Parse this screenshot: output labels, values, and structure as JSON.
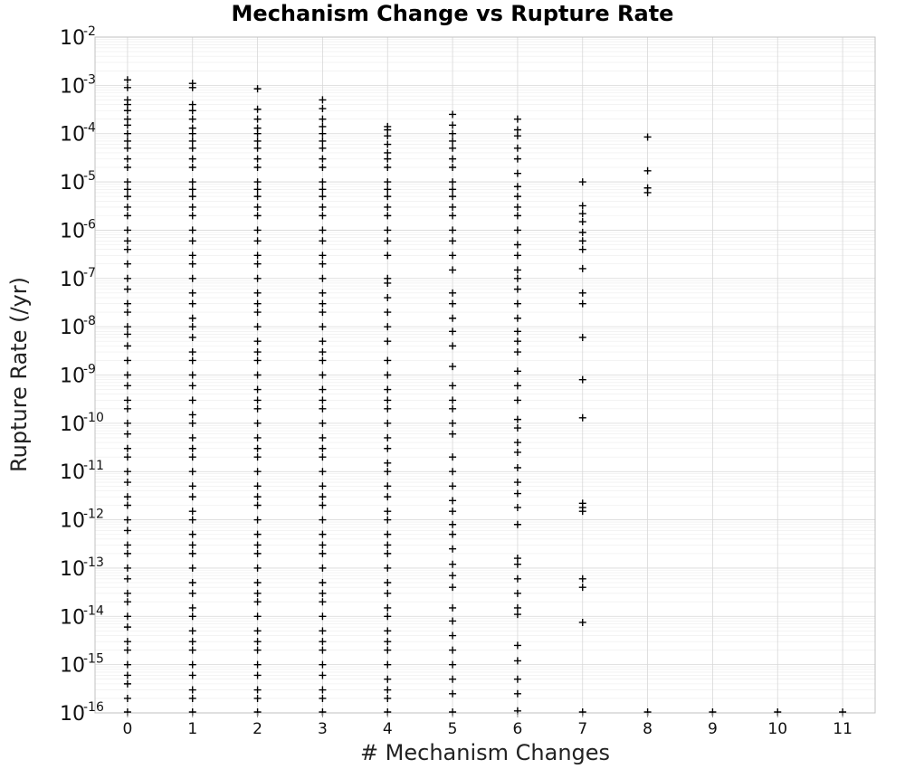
{
  "chart_data": {
    "type": "scatter",
    "title": "Mechanism Change vs Rupture Rate",
    "xlabel": "# Mechanism Changes",
    "ylabel": "Rupture Rate (/yr)",
    "x_ticks": [
      "0",
      "1",
      "2",
      "3",
      "4",
      "5",
      "6",
      "7",
      "8",
      "9",
      "10",
      "11"
    ],
    "x_range": [
      -0.5,
      11.5
    ],
    "y_scale": "log",
    "y_range": [
      1e-16,
      0.01
    ],
    "y_ticks": [
      {
        "base": "10",
        "exp": "-2"
      },
      {
        "base": "10",
        "exp": "-3"
      },
      {
        "base": "10",
        "exp": "-4"
      },
      {
        "base": "10",
        "exp": "-5"
      },
      {
        "base": "10",
        "exp": "-6"
      },
      {
        "base": "10",
        "exp": "-7"
      },
      {
        "base": "10",
        "exp": "-8"
      },
      {
        "base": "10",
        "exp": "-9"
      },
      {
        "base": "10",
        "exp": "-10"
      },
      {
        "base": "10",
        "exp": "-11"
      },
      {
        "base": "10",
        "exp": "-12"
      },
      {
        "base": "10",
        "exp": "-13"
      },
      {
        "base": "10",
        "exp": "-14"
      },
      {
        "base": "10",
        "exp": "-15"
      },
      {
        "base": "10",
        "exp": "-16"
      }
    ],
    "grid": true,
    "marker": "+",
    "series": [
      {
        "x": 0,
        "y": [
          0.0013,
          0.0009,
          0.0005,
          0.0004,
          0.0003,
          0.0002,
          0.00015,
          0.0001,
          7e-05,
          5e-05,
          3e-05,
          2e-05,
          1e-05,
          7e-06,
          5e-06,
          3e-06,
          2e-06,
          1e-06,
          6e-07,
          4e-07,
          2e-07,
          1e-07,
          6e-08,
          3e-08,
          2e-08,
          1e-08,
          7e-09,
          4e-09,
          2e-09,
          1e-09,
          6e-10,
          3e-10,
          2e-10,
          1e-10,
          6e-11,
          3e-11,
          2e-11,
          1e-11,
          6e-12,
          3e-12,
          2e-12,
          1e-12,
          6e-13,
          3e-13,
          2e-13,
          1e-13,
          6e-14,
          3e-14,
          2e-14,
          1e-14,
          6e-15,
          3e-15,
          2e-15,
          1e-15,
          6e-16,
          4e-16,
          2e-16,
          1e-16
        ]
      },
      {
        "x": 1,
        "y": [
          0.0011,
          0.0009,
          0.0004,
          0.0003,
          0.0002,
          0.00013,
          0.0001,
          7e-05,
          5e-05,
          3e-05,
          2e-05,
          1e-05,
          7e-06,
          5e-06,
          3e-06,
          2e-06,
          1e-06,
          6e-07,
          3e-07,
          2e-07,
          1e-07,
          5e-08,
          3e-08,
          1.5e-08,
          1e-08,
          6e-09,
          3e-09,
          2e-09,
          1e-09,
          6e-10,
          3e-10,
          1.5e-10,
          1e-10,
          5e-11,
          3e-11,
          2e-11,
          1e-11,
          5e-12,
          3e-12,
          1.5e-12,
          1e-12,
          5e-13,
          3e-13,
          2e-13,
          1e-13,
          5e-14,
          3e-14,
          1.5e-14,
          1e-14,
          5e-15,
          3e-15,
          2e-15,
          1e-15,
          6e-16,
          3e-16,
          2e-16,
          1e-16
        ]
      },
      {
        "x": 2,
        "y": [
          0.00085,
          0.00032,
          0.0002,
          0.00013,
          0.0001,
          7e-05,
          5e-05,
          3e-05,
          2e-05,
          1e-05,
          7e-06,
          5e-06,
          3e-06,
          2e-06,
          1e-06,
          6e-07,
          3e-07,
          2e-07,
          1e-07,
          5e-08,
          3e-08,
          2e-08,
          1e-08,
          5e-09,
          3e-09,
          2e-09,
          1e-09,
          5e-10,
          3e-10,
          2e-10,
          1e-10,
          5e-11,
          3e-11,
          2e-11,
          1e-11,
          5e-12,
          3e-12,
          2e-12,
          1e-12,
          5e-13,
          3e-13,
          2e-13,
          1e-13,
          5e-14,
          3e-14,
          2e-14,
          1e-14,
          5e-15,
          3e-15,
          2e-15,
          1e-15,
          6e-16,
          3e-16,
          2e-16,
          1e-16
        ]
      },
      {
        "x": 3,
        "y": [
          0.0005,
          0.00033,
          0.0002,
          0.00014,
          0.0001,
          7e-05,
          5e-05,
          3e-05,
          2e-05,
          1e-05,
          7e-06,
          5e-06,
          3e-06,
          2e-06,
          1e-06,
          6e-07,
          3e-07,
          2e-07,
          1e-07,
          5e-08,
          3e-08,
          2e-08,
          1e-08,
          5e-09,
          3e-09,
          2e-09,
          1e-09,
          5e-10,
          3e-10,
          2e-10,
          1e-10,
          5e-11,
          3e-11,
          2e-11,
          1e-11,
          5e-12,
          3e-12,
          2e-12,
          1e-12,
          5e-13,
          3e-13,
          2e-13,
          1e-13,
          5e-14,
          3e-14,
          2e-14,
          1e-14,
          5e-15,
          3e-15,
          2e-15,
          1e-15,
          6e-16,
          3e-16,
          2e-16,
          1e-16
        ]
      },
      {
        "x": 4,
        "y": [
          0.00014,
          0.00012,
          9e-05,
          6e-05,
          4e-05,
          3e-05,
          2e-05,
          1e-05,
          7e-06,
          5e-06,
          3e-06,
          2e-06,
          1e-06,
          6e-07,
          3e-07,
          1e-07,
          8e-08,
          4e-08,
          2e-08,
          1e-08,
          5e-09,
          2e-09,
          1e-09,
          5e-10,
          3e-10,
          2e-10,
          1e-10,
          5e-11,
          3e-11,
          1.5e-11,
          1e-11,
          5e-12,
          3e-12,
          1.5e-12,
          1e-12,
          5e-13,
          3e-13,
          2e-13,
          1e-13,
          5e-14,
          3e-14,
          1.5e-14,
          1e-14,
          5e-15,
          3e-15,
          2e-15,
          1e-15,
          5e-16,
          3e-16,
          2e-16,
          1e-16
        ]
      },
      {
        "x": 5,
        "y": [
          0.00025,
          0.00015,
          0.0001,
          7e-05,
          5e-05,
          3e-05,
          2e-05,
          1e-05,
          7e-06,
          5e-06,
          3e-06,
          2e-06,
          1e-06,
          6e-07,
          3e-07,
          1.5e-07,
          5e-08,
          3e-08,
          1.5e-08,
          8e-09,
          4e-09,
          1.5e-09,
          6e-10,
          3e-10,
          2e-10,
          1e-10,
          6e-11,
          2e-11,
          1e-11,
          5e-12,
          2.5e-12,
          1.5e-12,
          8e-13,
          5e-13,
          2.5e-13,
          1.2e-13,
          7e-14,
          4e-14,
          1.5e-14,
          8e-15,
          4e-15,
          2e-15,
          1e-15,
          5e-16,
          2.5e-16,
          1e-16
        ]
      },
      {
        "x": 6,
        "y": [
          0.0002,
          0.00012,
          9e-05,
          5e-05,
          3e-05,
          1.5e-05,
          8e-06,
          5e-06,
          3e-06,
          2e-06,
          1e-06,
          5e-07,
          3e-07,
          1.5e-07,
          1e-07,
          6e-08,
          3e-08,
          1.5e-08,
          8e-09,
          5e-09,
          3e-09,
          1.2e-09,
          6e-10,
          3e-10,
          1.2e-10,
          8e-11,
          4e-11,
          2.5e-11,
          1.2e-11,
          6e-12,
          3.5e-12,
          1.8e-12,
          8e-13,
          1.6e-13,
          1.2e-13,
          6e-14,
          3e-14,
          1.5e-14,
          1.1e-14,
          2.5e-15,
          1.2e-15,
          5e-16,
          2.5e-16,
          1.1e-16
        ]
      },
      {
        "x": 7,
        "y": [
          1e-05,
          3.2e-06,
          2.2e-06,
          1.5e-06,
          9e-07,
          6e-07,
          4e-07,
          1.6e-07,
          5e-08,
          3e-08,
          6e-09,
          8e-10,
          1.3e-10,
          2.2e-12,
          1.8e-12,
          1.5e-12,
          6e-14,
          4e-14,
          7.5e-15,
          1e-16
        ]
      },
      {
        "x": 8,
        "y": [
          8.5e-05,
          1.7e-05,
          7.5e-06,
          6e-06,
          1e-16
        ]
      },
      {
        "x": 9,
        "y": [
          1e-16
        ]
      },
      {
        "x": 10,
        "y": [
          1e-16
        ]
      },
      {
        "x": 11,
        "y": [
          1e-16
        ]
      }
    ]
  }
}
